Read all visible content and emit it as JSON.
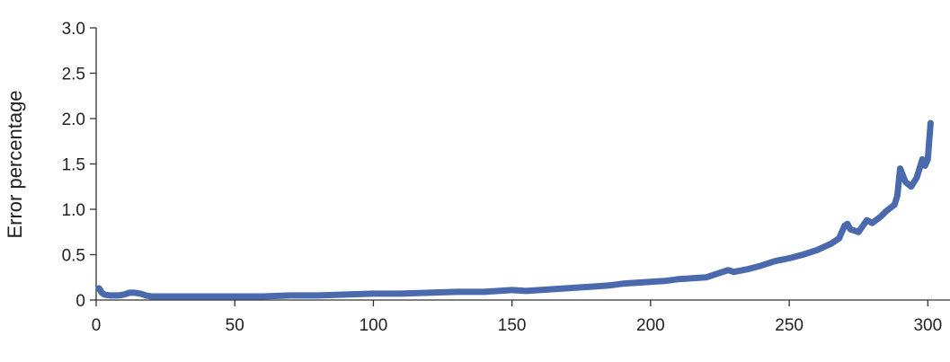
{
  "chart_data": {
    "type": "line",
    "title": "",
    "xlabel": "",
    "ylabel": "Error percentage",
    "xlim": [
      0,
      308
    ],
    "ylim": [
      0,
      3.0
    ],
    "x_ticks": [
      0,
      50,
      100,
      150,
      200,
      250,
      300
    ],
    "x_tick_labels": [
      "0",
      "50",
      "100",
      "150",
      "200",
      "250",
      "300"
    ],
    "y_ticks": [
      0,
      0.5,
      1.0,
      1.5,
      2.0,
      2.5,
      3.0
    ],
    "y_tick_labels": [
      "0",
      "0.5",
      "1.0",
      "1.5",
      "2.0",
      "2.5",
      "3.0"
    ],
    "grid": false,
    "line_color": "#4a6aad",
    "axis_color": "#333333",
    "series": [
      {
        "x": [
          1,
          2,
          3,
          5,
          8,
          10,
          12,
          14,
          16,
          18,
          20,
          25,
          30,
          40,
          50,
          60,
          70,
          80,
          90,
          100,
          110,
          120,
          130,
          140,
          145,
          150,
          155,
          160,
          165,
          170,
          175,
          180,
          185,
          190,
          195,
          200,
          205,
          210,
          215,
          220,
          225,
          228,
          230,
          235,
          240,
          245,
          250,
          255,
          260,
          265,
          268,
          270,
          271,
          272,
          275,
          278,
          280,
          283,
          285,
          288,
          289,
          290,
          292,
          294,
          296,
          298,
          299,
          300,
          301
        ],
        "y": [
          0.13,
          0.08,
          0.06,
          0.05,
          0.05,
          0.06,
          0.08,
          0.08,
          0.07,
          0.05,
          0.04,
          0.04,
          0.04,
          0.04,
          0.04,
          0.04,
          0.05,
          0.05,
          0.06,
          0.07,
          0.07,
          0.08,
          0.09,
          0.09,
          0.1,
          0.11,
          0.1,
          0.11,
          0.12,
          0.13,
          0.14,
          0.15,
          0.16,
          0.18,
          0.19,
          0.2,
          0.21,
          0.23,
          0.24,
          0.25,
          0.3,
          0.33,
          0.31,
          0.34,
          0.38,
          0.43,
          0.46,
          0.5,
          0.55,
          0.62,
          0.68,
          0.82,
          0.84,
          0.78,
          0.75,
          0.88,
          0.85,
          0.92,
          0.98,
          1.05,
          1.15,
          1.45,
          1.3,
          1.25,
          1.35,
          1.55,
          1.48,
          1.55,
          1.95
        ]
      }
    ]
  }
}
